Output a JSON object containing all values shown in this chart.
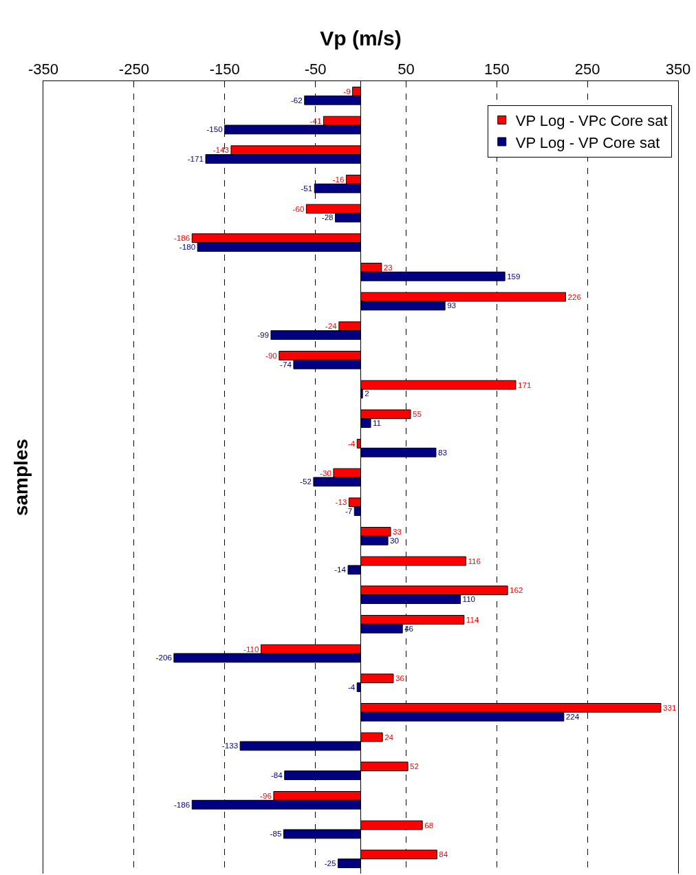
{
  "chart_data": {
    "type": "bar",
    "orientation": "horizontal",
    "xlabel": "Vp (m/s)",
    "ylabel": "samples",
    "categories": [
      null,
      null,
      null,
      null,
      null,
      null,
      null,
      null,
      null,
      null,
      null,
      null,
      null,
      null,
      null,
      null,
      null,
      null,
      null,
      null,
      null,
      null,
      null,
      null,
      null,
      null,
      null
    ],
    "series": [
      {
        "name": "VP Log - VPc Core sat",
        "color": "#ff0000",
        "values": [
          -9,
          -41,
          -143,
          -16,
          -60,
          -186,
          23,
          226,
          -24,
          -90,
          171,
          55,
          -4,
          -30,
          -13,
          33,
          116,
          162,
          114,
          -110,
          36,
          331,
          24,
          52,
          -96,
          68,
          84
        ]
      },
      {
        "name": "VP Log - VP Core sat",
        "color": "#000080",
        "values": [
          -62,
          -150,
          -171,
          -51,
          -28,
          -180,
          159,
          93,
          -99,
          -74,
          2,
          11,
          83,
          -52,
          -7,
          30,
          -14,
          110,
          46,
          -206,
          -4,
          224,
          -133,
          -84,
          -186,
          -85,
          -25
        ]
      }
    ],
    "xlim": [
      -350,
      350
    ],
    "xticks": [
      -350,
      -250,
      -150,
      -50,
      50,
      150,
      250,
      350
    ],
    "grid": "x",
    "legend": "top right",
    "data_labels": true
  }
}
